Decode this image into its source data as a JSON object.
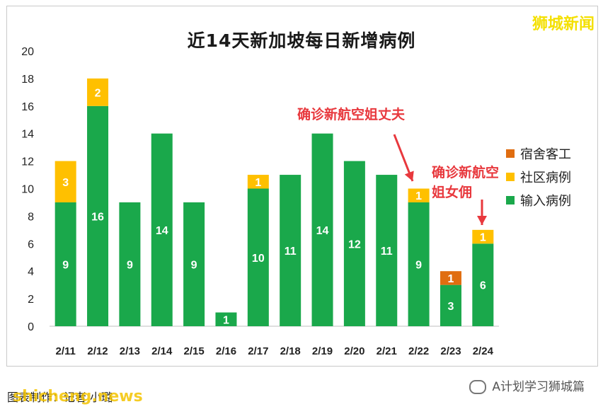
{
  "brand": "狮城新闻",
  "footer": {
    "credit": "图表制作：记者 小璐",
    "watermark": "shicheng.news",
    "wechat": "A计划学习狮城篇"
  },
  "chart_data": {
    "type": "bar",
    "stacked": true,
    "title": "近14天新加坡每日新增病例",
    "categories": [
      "2/11",
      "2/12",
      "2/13",
      "2/14",
      "2/15",
      "2/16",
      "2/17",
      "2/18",
      "2/19",
      "2/20",
      "2/21",
      "2/22",
      "2/23",
      "2/24"
    ],
    "series": [
      {
        "name": "输入病例",
        "color": "#1aa84b",
        "values": [
          9,
          16,
          9,
          14,
          9,
          1,
          10,
          11,
          14,
          12,
          11,
          9,
          3,
          6
        ]
      },
      {
        "name": "社区病例",
        "color": "#ffc000",
        "values": [
          3,
          2,
          0,
          0,
          0,
          0,
          1,
          0,
          0,
          0,
          0,
          1,
          0,
          1
        ]
      },
      {
        "name": "宿舍客工",
        "color": "#e06d10",
        "values": [
          0,
          0,
          0,
          0,
          0,
          0,
          0,
          0,
          0,
          0,
          0,
          0,
          1,
          0
        ]
      }
    ],
    "legend_order": [
      "宿舍客工",
      "社区病例",
      "输入病例"
    ],
    "legend_position": "right",
    "ylim": [
      0,
      20
    ],
    "yticks": [
      0,
      2,
      4,
      6,
      8,
      10,
      12,
      14,
      16,
      18,
      20
    ],
    "grid": false,
    "annotations": [
      {
        "text": "确诊新航空姐丈夫",
        "target": "2/22"
      },
      {
        "text": "确诊新航空姐女佣",
        "target": "2/24"
      }
    ]
  }
}
